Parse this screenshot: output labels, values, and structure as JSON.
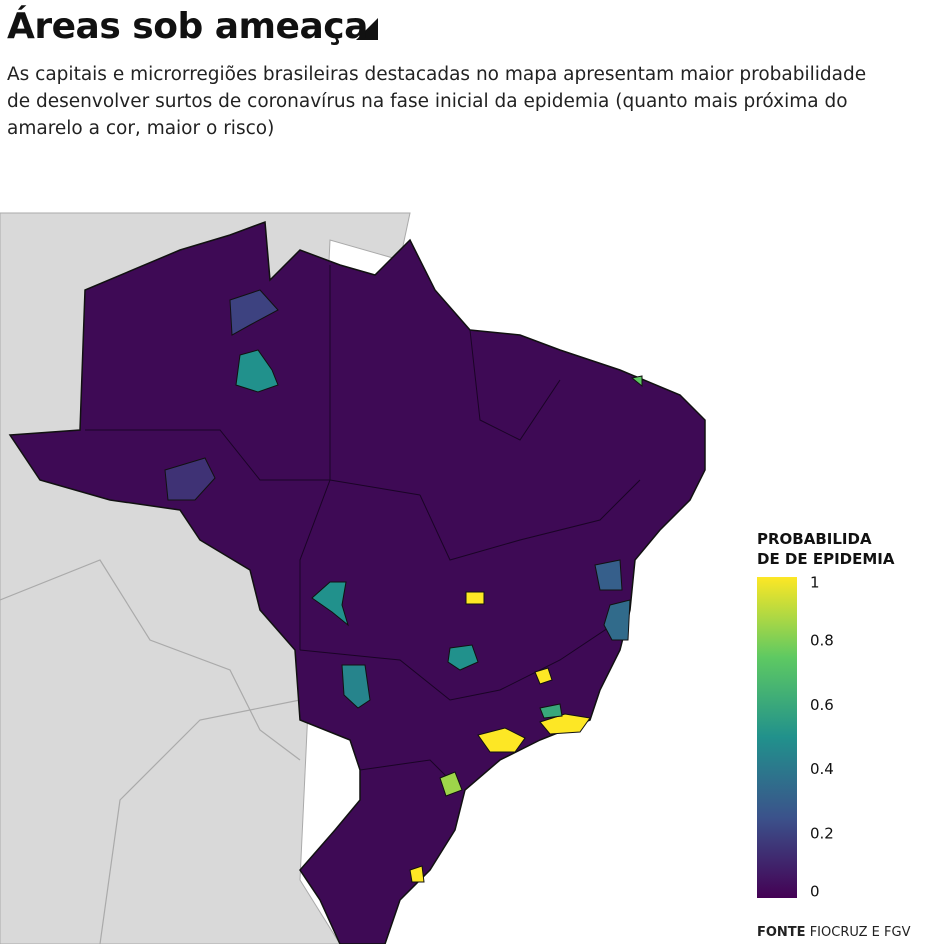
{
  "header": {
    "title": "Áreas sob ameaça",
    "subtitle": "As capitais e microrregiões brasileiras destacadas no mapa apresentam maior probabilidade de desenvolver surtos de coronavírus na fase inicial da epidemia (quanto mais próxima do amarelo a cor, maior o risco)"
  },
  "map": {
    "regions": [
      {
        "value": 0.5
      },
      {
        "value": 0.2
      },
      {
        "value": 1
      },
      {
        "value": 0.5
      },
      {
        "value": 1
      },
      {
        "value": 0.5
      },
      {
        "value": 0.45
      },
      {
        "value": 1
      },
      {
        "value": 1
      },
      {
        "value": 0.85
      },
      {
        "value": 1
      },
      {
        "value": 0.35
      },
      {
        "value": 0.75
      },
      {
        "value": 0.15
      },
      {
        "value": 0.3
      },
      {
        "value": 0.6
      }
    ]
  },
  "legend": {
    "title_lines": [
      "PROBABILIDA",
      "DE DE EPIDEMIA"
    ],
    "range": [
      0,
      1
    ],
    "ticks": [
      0,
      0.2,
      0.4,
      0.6,
      0.8,
      1
    ]
  },
  "source": {
    "label": "FONTE",
    "text": "FIOCRUZ E FGV"
  }
}
